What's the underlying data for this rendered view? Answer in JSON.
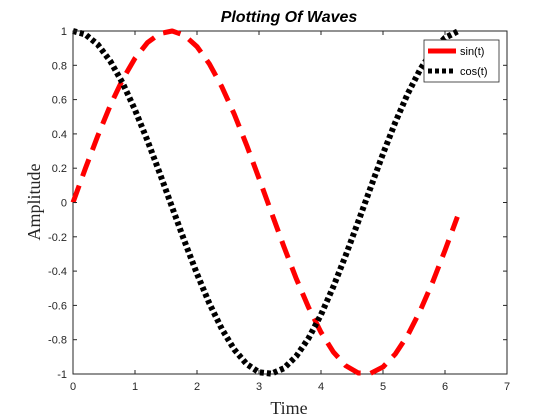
{
  "chart_data": {
    "type": "line",
    "title": "Plotting Of Waves",
    "xlabel": "Time",
    "ylabel": "Amplitude",
    "xlim": [
      0,
      7
    ],
    "ylim": [
      -1,
      1
    ],
    "xticks": [
      "0",
      "1",
      "2",
      "3",
      "4",
      "5",
      "6",
      "7"
    ],
    "yticks": [
      "-1",
      "-0.8",
      "-0.6",
      "-0.4",
      "-0.2",
      "0",
      "0.2",
      "0.4",
      "0.6",
      "0.8",
      "1"
    ],
    "grid": false,
    "legend_position": "top-right",
    "x": [
      0,
      0.2,
      0.4,
      0.6,
      0.8,
      1.0,
      1.2,
      1.4,
      1.6,
      1.8,
      2.0,
      2.2,
      2.4,
      2.6,
      2.8,
      3.0,
      3.2,
      3.4,
      3.6,
      3.8,
      4.0,
      4.2,
      4.4,
      4.6,
      4.8,
      5.0,
      5.2,
      5.4,
      5.6,
      5.8,
      6.0,
      6.2
    ],
    "series": [
      {
        "name": "sin(t)",
        "color": "#ff0000",
        "style": "dashed",
        "values": [
          0,
          0.199,
          0.389,
          0.565,
          0.717,
          0.841,
          0.932,
          0.985,
          1.0,
          0.974,
          0.909,
          0.808,
          0.675,
          0.516,
          0.335,
          0.141,
          -0.058,
          -0.256,
          -0.443,
          -0.612,
          -0.757,
          -0.872,
          -0.952,
          -0.994,
          -0.996,
          -0.959,
          -0.883,
          -0.773,
          -0.631,
          -0.465,
          -0.279,
          -0.083
        ]
      },
      {
        "name": "cos(t)",
        "color": "#000000",
        "style": "dotted",
        "values": [
          1.0,
          0.98,
          0.921,
          0.825,
          0.697,
          0.54,
          0.362,
          0.17,
          -0.029,
          -0.227,
          -0.416,
          -0.589,
          -0.737,
          -0.857,
          -0.942,
          -0.99,
          -0.998,
          -0.967,
          -0.897,
          -0.791,
          -0.654,
          -0.49,
          -0.307,
          -0.112,
          0.087,
          0.284,
          0.469,
          0.635,
          0.776,
          0.886,
          0.96,
          0.997
        ]
      }
    ]
  }
}
